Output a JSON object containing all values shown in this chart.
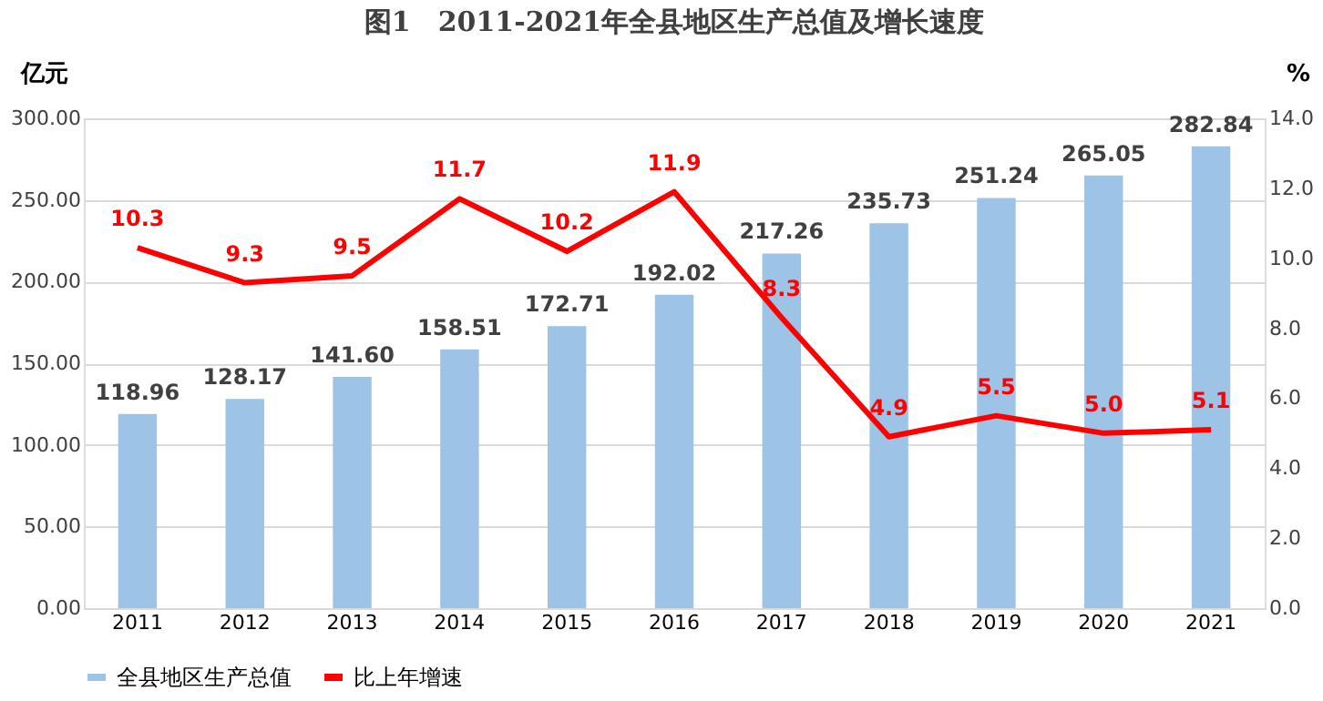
{
  "chart_data": {
    "type": "bar",
    "title": "图1　2011-2021年全县地区生产总值及增长速度",
    "ylabel": "亿元",
    "y2label": "%",
    "categories": [
      "2011",
      "2012",
      "2013",
      "2014",
      "2015",
      "2016",
      "2017",
      "2018",
      "2019",
      "2020",
      "2021"
    ],
    "series": [
      {
        "name": "全县地区生产总值",
        "color": "#9dc3e6",
        "values": [
          118.96,
          128.17,
          141.6,
          158.51,
          172.71,
          192.02,
          217.26,
          235.73,
          251.24,
          265.05,
          282.84
        ],
        "value_labels": [
          "118.96",
          "128.17",
          "141.60",
          "158.51",
          "172.71",
          "192.02",
          "217.26",
          "235.73",
          "251.24",
          "265.05",
          "282.84"
        ]
      },
      {
        "name": "比上年增速",
        "type": "line",
        "axis": "y2",
        "color": "#ff0000",
        "values": [
          10.3,
          9.3,
          9.5,
          11.7,
          10.2,
          11.9,
          8.3,
          4.9,
          5.5,
          5.0,
          5.1
        ],
        "value_labels": [
          "10.3",
          "9.3",
          "9.5",
          "11.7",
          "10.2",
          "11.9",
          "8.3",
          "4.9",
          "5.5",
          "5.0",
          "5.1"
        ]
      }
    ],
    "ylim": [
      0,
      300
    ],
    "yticks": [
      {
        "value": 0,
        "label": "0.00"
      },
      {
        "value": 50,
        "label": "50.00"
      },
      {
        "value": 100,
        "label": "100.00"
      },
      {
        "value": 150,
        "label": "150.00"
      },
      {
        "value": 200,
        "label": "200.00"
      },
      {
        "value": 250,
        "label": "250.00"
      },
      {
        "value": 300,
        "label": "300.00"
      }
    ],
    "y2lim": [
      0,
      14
    ],
    "y2ticks": [
      {
        "value": 0,
        "label": "0.0"
      },
      {
        "value": 2,
        "label": "2.0"
      },
      {
        "value": 4,
        "label": "4.0"
      },
      {
        "value": 6,
        "label": "6.0"
      },
      {
        "value": 8,
        "label": "8.0"
      },
      {
        "value": 10,
        "label": "10.0"
      },
      {
        "value": 12,
        "label": "12.0"
      },
      {
        "value": 14,
        "label": "14.0"
      }
    ],
    "grid": "y",
    "legend": "bottom",
    "marker": "none",
    "line_style": "solid"
  }
}
